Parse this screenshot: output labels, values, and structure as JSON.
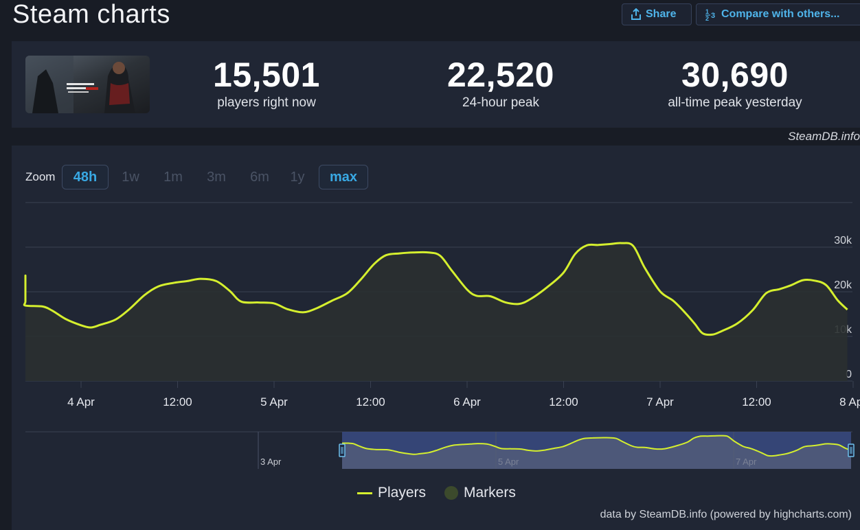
{
  "header": {
    "title": "Steam charts",
    "share_label": "Share",
    "compare_label": "Compare with others...",
    "compare_icon_text": "1/2 3"
  },
  "stats": [
    {
      "value": "15,501",
      "label": "players right now"
    },
    {
      "value": "22,520",
      "label": "24-hour peak"
    },
    {
      "value": "30,690",
      "label": "all-time peak yesterday"
    }
  ],
  "credit_top": "SteamDB.info",
  "zoom": {
    "label": "Zoom",
    "options": [
      "48h",
      "1w",
      "1m",
      "3m",
      "6m",
      "1y",
      "max"
    ],
    "active": [
      "48h",
      "max"
    ]
  },
  "chart_data": {
    "type": "line",
    "series": [
      {
        "name": "Players",
        "color": "#d5ef2e",
        "points": [
          [
            -0.65,
            18000
          ],
          [
            -0.6,
            23200
          ],
          [
            -0.55,
            23300
          ],
          [
            -0.5,
            22800
          ],
          [
            -0.45,
            20500
          ],
          [
            -0.38,
            17800
          ],
          [
            -0.3,
            16900
          ],
          [
            -0.2,
            16700
          ],
          [
            -0.15,
            15800
          ],
          [
            -0.08,
            13900
          ],
          [
            0,
            12500
          ],
          [
            0.05,
            12000
          ],
          [
            0.1,
            12600
          ],
          [
            0.18,
            13800
          ],
          [
            0.25,
            16100
          ],
          [
            0.33,
            19300
          ],
          [
            0.4,
            21200
          ],
          [
            0.48,
            22000
          ],
          [
            0.55,
            22400
          ],
          [
            0.62,
            22900
          ],
          [
            0.7,
            22400
          ],
          [
            0.77,
            20200
          ],
          [
            0.83,
            17800
          ],
          [
            0.92,
            17600
          ],
          [
            1.0,
            17400
          ],
          [
            1.07,
            16100
          ],
          [
            1.15,
            15400
          ],
          [
            1.22,
            16300
          ],
          [
            1.3,
            18000
          ],
          [
            1.38,
            19700
          ],
          [
            1.45,
            22800
          ],
          [
            1.52,
            26300
          ],
          [
            1.58,
            28200
          ],
          [
            1.65,
            28600
          ],
          [
            1.72,
            28800
          ],
          [
            1.8,
            28800
          ],
          [
            1.86,
            28100
          ],
          [
            1.92,
            24800
          ],
          [
            2.0,
            20500
          ],
          [
            2.05,
            19100
          ],
          [
            2.12,
            19000
          ],
          [
            2.2,
            17600
          ],
          [
            2.27,
            17300
          ],
          [
            2.33,
            18400
          ],
          [
            2.42,
            21200
          ],
          [
            2.5,
            24300
          ],
          [
            2.56,
            28500
          ],
          [
            2.62,
            30400
          ],
          [
            2.68,
            30500
          ],
          [
            2.74,
            30700
          ],
          [
            2.8,
            30900
          ],
          [
            2.86,
            30300
          ],
          [
            2.92,
            25400
          ],
          [
            3.0,
            20100
          ],
          [
            3.07,
            17900
          ],
          [
            3.13,
            15300
          ],
          [
            3.18,
            12800
          ],
          [
            3.22,
            10700
          ],
          [
            3.27,
            10400
          ],
          [
            3.32,
            11200
          ],
          [
            3.4,
            12900
          ],
          [
            3.48,
            15900
          ],
          [
            3.55,
            19700
          ],
          [
            3.62,
            20600
          ],
          [
            3.68,
            21500
          ],
          [
            3.74,
            22600
          ],
          [
            3.8,
            22500
          ],
          [
            3.86,
            21500
          ],
          [
            3.92,
            18100
          ],
          [
            3.97,
            16000
          ]
        ]
      },
      {
        "name": "Markers",
        "color": "#3c4a2c",
        "points": []
      }
    ],
    "x_ticks": [
      {
        "v": 0,
        "label": "4 Apr"
      },
      {
        "v": 0.5,
        "label": "12:00"
      },
      {
        "v": 1,
        "label": "5 Apr"
      },
      {
        "v": 1.5,
        "label": "12:00"
      },
      {
        "v": 2,
        "label": "6 Apr"
      },
      {
        "v": 2.5,
        "label": "12:00"
      },
      {
        "v": 3,
        "label": "7 Apr"
      },
      {
        "v": 3.5,
        "label": "12:00"
      },
      {
        "v": 4,
        "label": "8 Apr"
      }
    ],
    "y_ticks": [
      {
        "v": 0,
        "label": "0"
      },
      {
        "v": 10000,
        "label": "10k"
      },
      {
        "v": 20000,
        "label": "20k"
      },
      {
        "v": 30000,
        "label": "30k"
      }
    ],
    "xlim": [
      -0.65,
      3.97
    ],
    "ylim": [
      0,
      40000
    ],
    "navigator": {
      "labels": [
        "3 Apr",
        "5 Apr",
        "7 Apr"
      ],
      "selected_range": [
        -0.6,
        3.97
      ]
    },
    "legend": [
      "Players",
      "Markers"
    ]
  },
  "footer_credit": "data by SteamDB.info (powered by highcharts.com)"
}
